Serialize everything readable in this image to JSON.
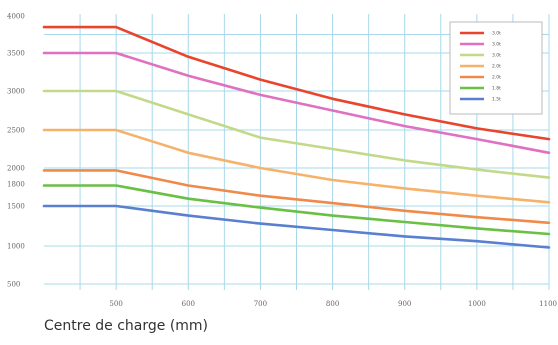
{
  "chart_data": {
    "type": "line",
    "title": "",
    "xlabel": "Centre de charge (mm)",
    "ylabel": "",
    "x_ticks": [
      "500",
      "600",
      "700",
      "800",
      "900",
      "1000",
      "1100"
    ],
    "y_ticks": [
      {
        "label": "4000",
        "value": 4000
      },
      {
        "label": "3500",
        "value": 3500
      },
      {
        "label": "3000",
        "value": 3000
      },
      {
        "label": "2500",
        "value": 2500
      },
      {
        "label": "2000",
        "value": 2000
      },
      {
        "label": "1800",
        "value": 1800
      },
      {
        "label": "1500",
        "value": 1500
      },
      {
        "label": "1000",
        "value": 1000
      },
      {
        "label": "500",
        "value": 500
      }
    ],
    "x": [
      400,
      500,
      600,
      700,
      800,
      900,
      1000,
      1100
    ],
    "series": [
      {
        "name": "3.0t",
        "color": "#e8452c",
        "values": [
          3850,
          3850,
          3450,
          3150,
          2900,
          2700,
          2520,
          2380
        ]
      },
      {
        "name": "3.0t",
        "color": "#e070c0",
        "values": [
          3500,
          3500,
          3200,
          2950,
          2750,
          2550,
          2380,
          2200
        ]
      },
      {
        "name": "3.0t",
        "color": "#c3d98a",
        "values": [
          3000,
          3000,
          2700,
          2400,
          2250,
          2100,
          1980,
          1880
        ]
      },
      {
        "name": "2.0t",
        "color": "#f6b26b",
        "values": [
          2500,
          2500,
          2200,
          2000,
          1850,
          1740,
          1640,
          1550
        ]
      },
      {
        "name": "2.0t",
        "color": "#f08a4b",
        "values": [
          1970,
          1970,
          1780,
          1640,
          1540,
          1440,
          1360,
          1290
        ]
      },
      {
        "name": "1.8t",
        "color": "#6abf45",
        "values": [
          1780,
          1780,
          1600,
          1480,
          1380,
          1300,
          1220,
          1150
        ]
      },
      {
        "name": "1.5t",
        "color": "#5a7fd0",
        "values": [
          1500,
          1500,
          1380,
          1280,
          1200,
          1120,
          1060,
          980
        ]
      }
    ],
    "xlim": [
      400,
      1100
    ],
    "grid": true,
    "legend": "top-right"
  }
}
